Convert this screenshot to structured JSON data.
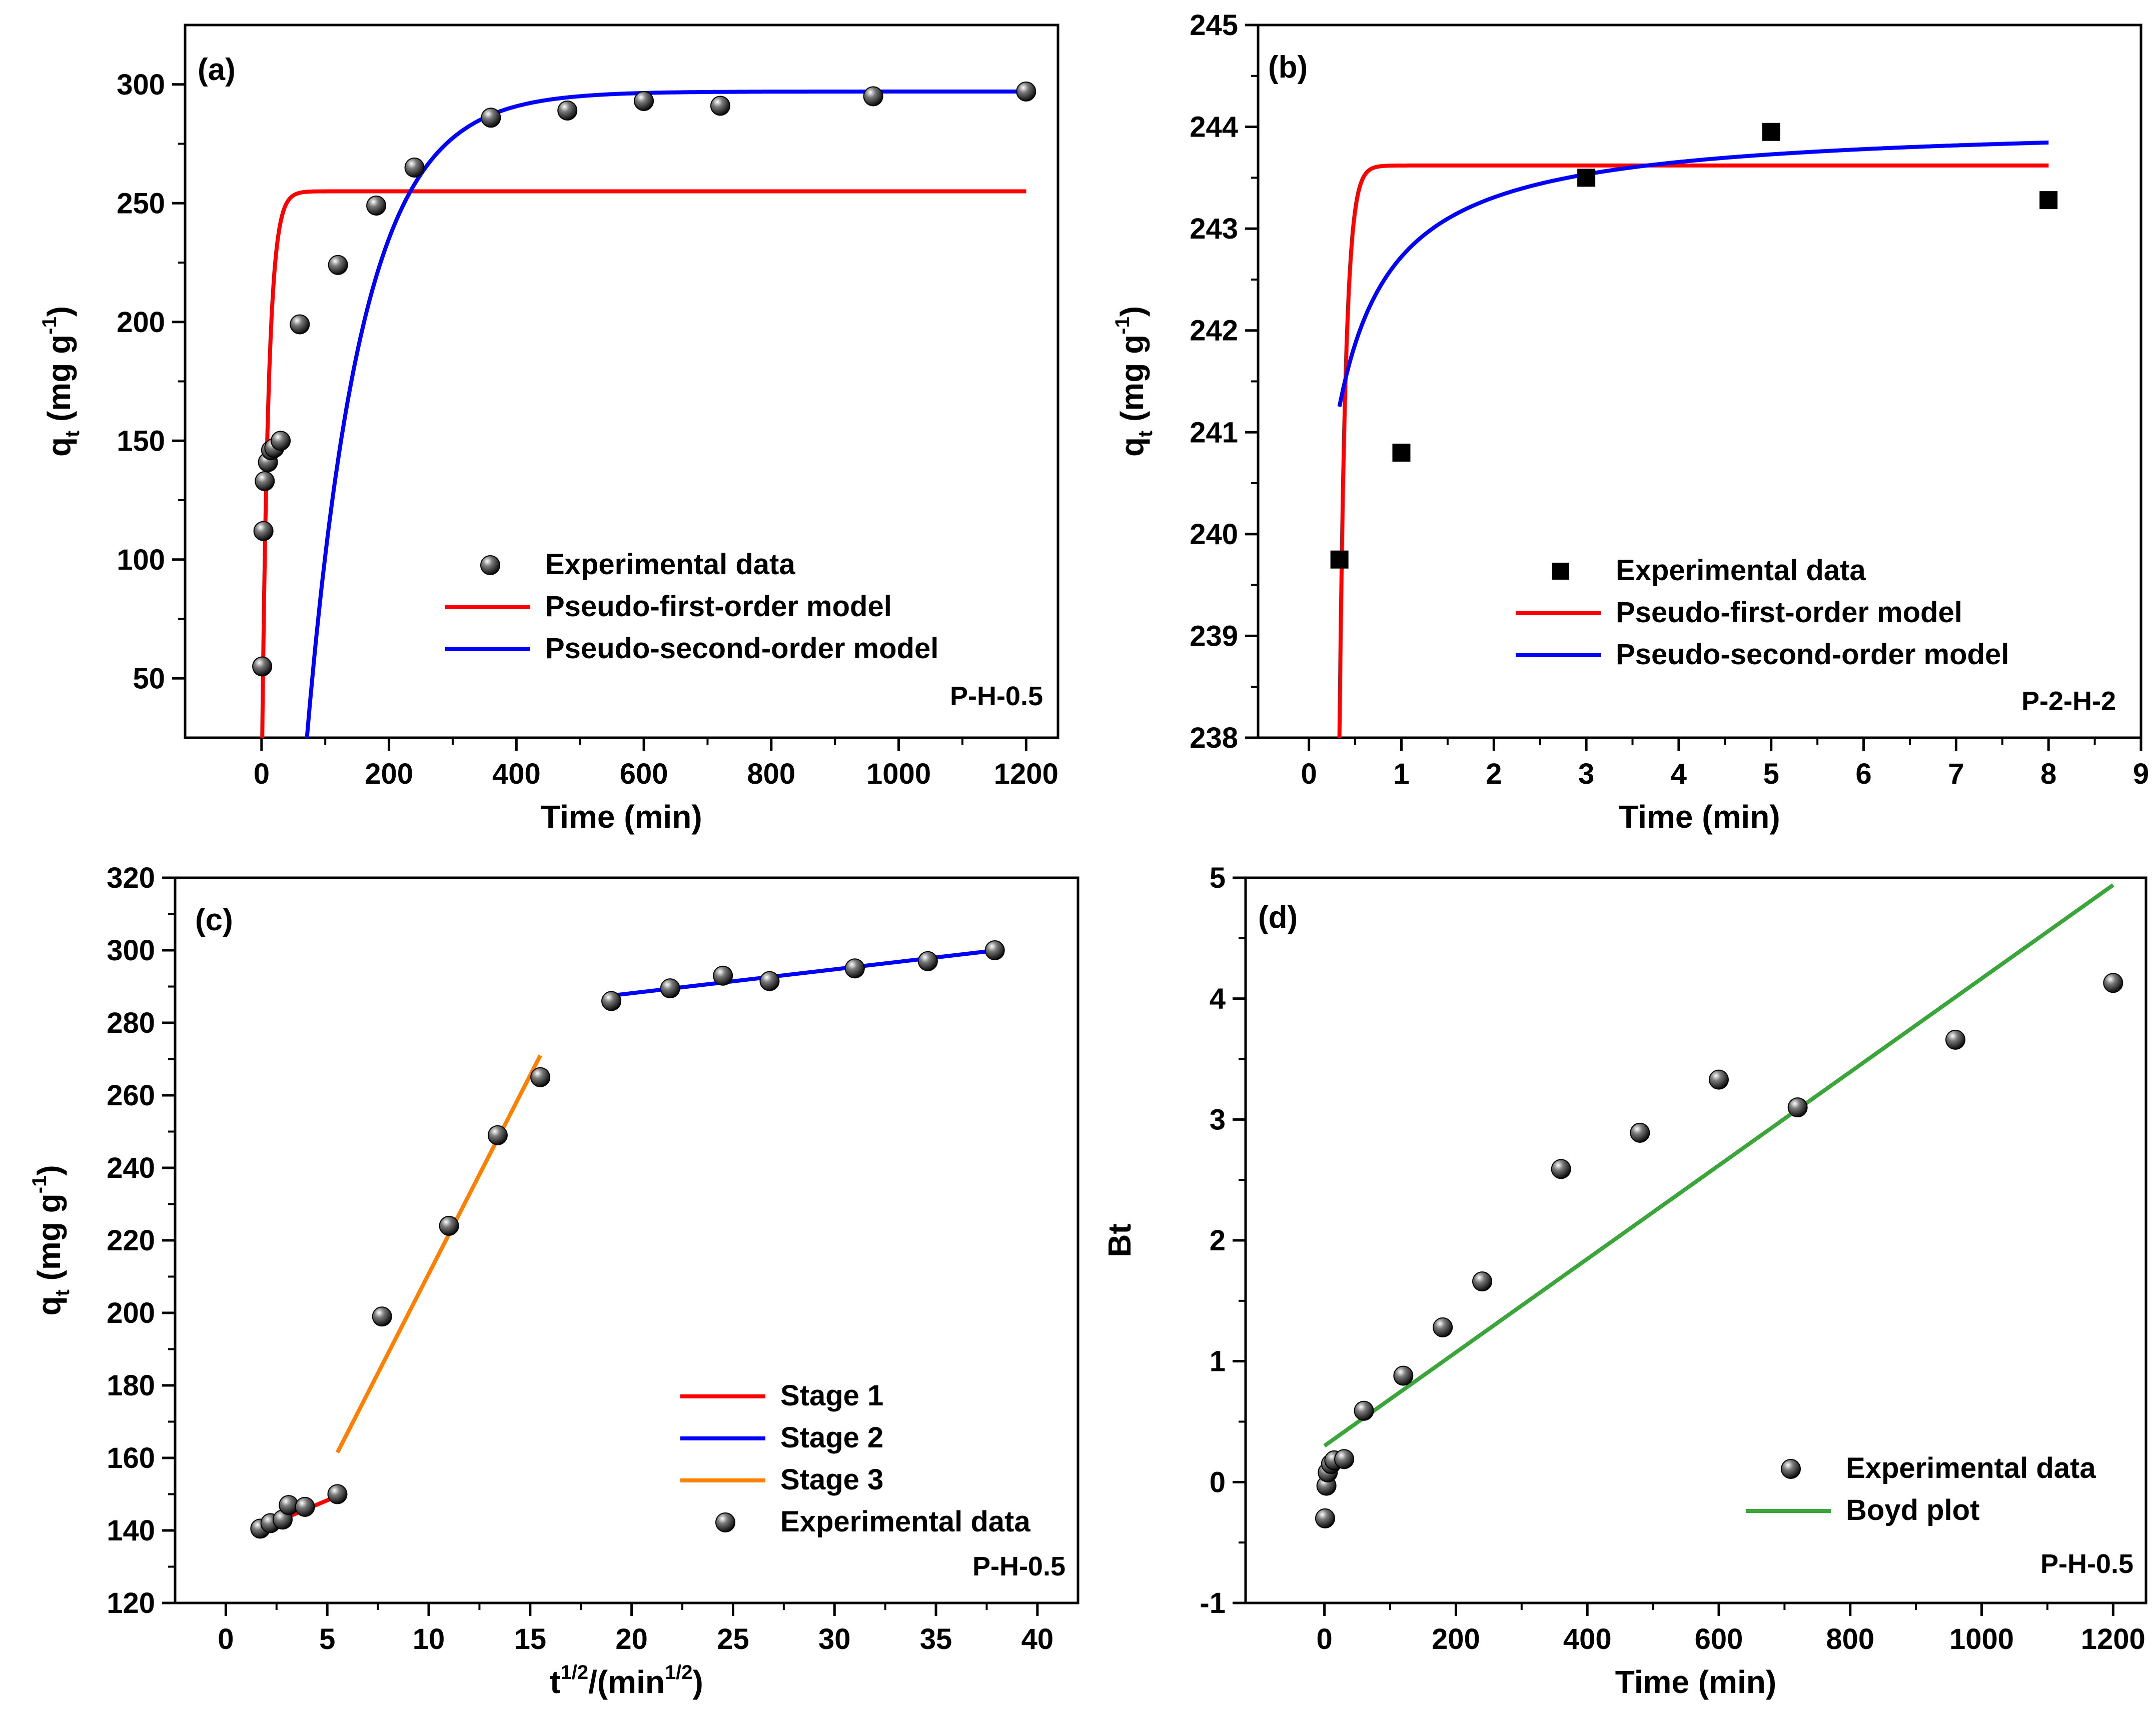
{
  "chart_data": [
    {
      "id": "a",
      "type": "scatter",
      "panel_label": "(a)",
      "sample_label": "P-H-0.5",
      "xlabel": "Time (min)",
      "ylabel": {
        "base": "q",
        "sub": "t",
        "mid": " (mg g",
        "sup": "-1",
        "end": ")"
      },
      "xlim": [
        -120,
        1250
      ],
      "ylim": [
        25,
        325
      ],
      "xticks": [
        0,
        200,
        400,
        600,
        800,
        1000,
        1200
      ],
      "yticks": [
        50,
        100,
        150,
        200,
        250,
        300
      ],
      "legend": {
        "placement": "bottom-right",
        "entries": [
          "Experimental data",
          "Pseudo-first-order model",
          "Pseudo-second-order model"
        ]
      },
      "series": [
        {
          "name": "Experimental data",
          "kind": "sphere",
          "color": "#000000",
          "x": [
            1,
            3,
            5,
            10,
            15,
            20,
            30,
            60,
            120,
            180,
            240,
            360,
            480,
            600,
            720,
            960,
            1200
          ],
          "y": [
            55,
            112,
            133,
            141,
            146,
            147,
            150,
            199,
            224,
            249,
            265,
            286,
            289,
            293,
            291,
            295,
            297
          ]
        },
        {
          "name": "Pseudo-first-order model",
          "kind": "line",
          "color": "#ff0000",
          "model": {
            "type": "pfo",
            "qe": 255,
            "k": 0.1,
            "t0": 0,
            "t1": 1200
          }
        },
        {
          "name": "Pseudo-second-order model",
          "kind": "line",
          "color": "#0000ff",
          "model": {
            "type": "logistic",
            "qe": 297,
            "q0": -320,
            "k": 0.0115,
            "t0": 13,
            "t1": 1200
          }
        }
      ]
    },
    {
      "id": "b",
      "type": "scatter",
      "panel_label": "(b)",
      "sample_label": "P-2-H-2",
      "xlabel": "Time (min)",
      "ylabel": {
        "base": "q",
        "sub": "t",
        "mid": " (mg g",
        "sup": "-1",
        "end": ")"
      },
      "xlim": [
        -0.55,
        9
      ],
      "ylim": [
        238,
        245
      ],
      "xticks": [
        0,
        1,
        2,
        3,
        4,
        5,
        6,
        7,
        8,
        9
      ],
      "yticks": [
        238,
        239,
        240,
        241,
        242,
        243,
        244,
        245
      ],
      "legend": {
        "placement": "bottom-right",
        "entries": [
          "Experimental data",
          "Pseudo-first-order model",
          "Pseudo-second-order model"
        ]
      },
      "series": [
        {
          "name": "Experimental data",
          "kind": "square",
          "color": "#000000",
          "x": [
            0.33,
            1,
            3,
            5,
            8
          ],
          "y": [
            239.75,
            240.8,
            243.5,
            243.95,
            243.28
          ]
        },
        {
          "name": "Pseudo-first-order model",
          "kind": "line",
          "color": "#ff0000",
          "model": {
            "type": "pfo_offset",
            "qe": 243.62,
            "qstart": 238,
            "tstart": 0.33,
            "k": 15,
            "t0": 0.33,
            "t1": 8
          }
        },
        {
          "name": "Pseudo-second-order model",
          "kind": "line",
          "color": "#0000ff",
          "model": {
            "type": "hyperbolic",
            "qe": 244.05,
            "ts": 0.274,
            "a": 1.69,
            "t0": 0.33,
            "t1": 8
          }
        }
      ]
    },
    {
      "id": "c",
      "type": "scatter",
      "panel_label": "(c)",
      "sample_label": "P-H-0.5",
      "xlabel": {
        "base": "t",
        "sup": "1/2",
        "mid": "/(min",
        "sup2": "1/2",
        "end": ")"
      },
      "ylabel": {
        "base": "q",
        "sub": "t",
        "mid": " (mg g",
        "sup": "-1",
        "end": ")"
      },
      "xlim": [
        -2.5,
        42
      ],
      "ylim": [
        120,
        320
      ],
      "xticks": [
        0,
        5,
        10,
        15,
        20,
        25,
        30,
        35,
        40
      ],
      "yticks": [
        120,
        140,
        160,
        180,
        200,
        220,
        240,
        260,
        280,
        300,
        320
      ],
      "legend": {
        "placement": "bottom-right",
        "entries": [
          "Stage 1",
          "Stage 2",
          "Stage 3",
          "Experimental data"
        ]
      },
      "series": [
        {
          "name": "Stage 1",
          "kind": "segment",
          "color": "#ff0000",
          "x": [
            1.7,
            5.5
          ],
          "y": [
            140.5,
            149.5
          ]
        },
        {
          "name": "Stage 2",
          "kind": "segment",
          "color": "#0000ff",
          "x": [
            19,
            38
          ],
          "y": [
            287.5,
            300
          ]
        },
        {
          "name": "Stage 3",
          "kind": "segment",
          "color": "#ff8000",
          "x": [
            5.5,
            15.5
          ],
          "y": [
            161.5,
            271
          ]
        },
        {
          "name": "Experimental data",
          "kind": "sphere",
          "color": "#000000",
          "x": [
            1.7,
            2.2,
            2.8,
            3.1,
            3.9,
            5.5,
            7.7,
            11.0,
            13.4,
            15.5,
            19.0,
            21.9,
            24.5,
            26.8,
            31.0,
            34.6,
            37.9
          ],
          "y": [
            140.5,
            142,
            143,
            147,
            146.5,
            150,
            199,
            224,
            249,
            265,
            286,
            289.5,
            293,
            291.5,
            295,
            297,
            300
          ]
        }
      ]
    },
    {
      "id": "d",
      "type": "scatter",
      "panel_label": "(d)",
      "sample_label": "P-H-0.5",
      "xlabel": "Time (min)",
      "ylabel": "Bt",
      "xlim": [
        -120,
        1250
      ],
      "ylim": [
        -1,
        5
      ],
      "xticks": [
        0,
        200,
        400,
        600,
        800,
        1000,
        1200
      ],
      "yticks": [
        -1,
        0,
        1,
        2,
        3,
        4,
        5
      ],
      "legend": {
        "placement": "bottom-right",
        "entries": [
          "Experimental data",
          "Boyd plot"
        ]
      },
      "series": [
        {
          "name": "Experimental data",
          "kind": "sphere",
          "color": "#000000",
          "x": [
            1,
            3,
            5,
            10,
            15,
            30,
            60,
            120,
            180,
            240,
            360,
            480,
            600,
            720,
            960,
            1200
          ],
          "y": [
            -0.3,
            -0.03,
            0.08,
            0.15,
            0.18,
            0.19,
            0.59,
            0.88,
            1.28,
            1.66,
            2.59,
            2.89,
            3.33,
            3.1,
            3.66,
            4.13
          ]
        },
        {
          "name": "Boyd plot",
          "kind": "segment",
          "color": "#3aa63a",
          "x": [
            0,
            1200
          ],
          "y": [
            0.3,
            4.94
          ]
        }
      ]
    }
  ]
}
